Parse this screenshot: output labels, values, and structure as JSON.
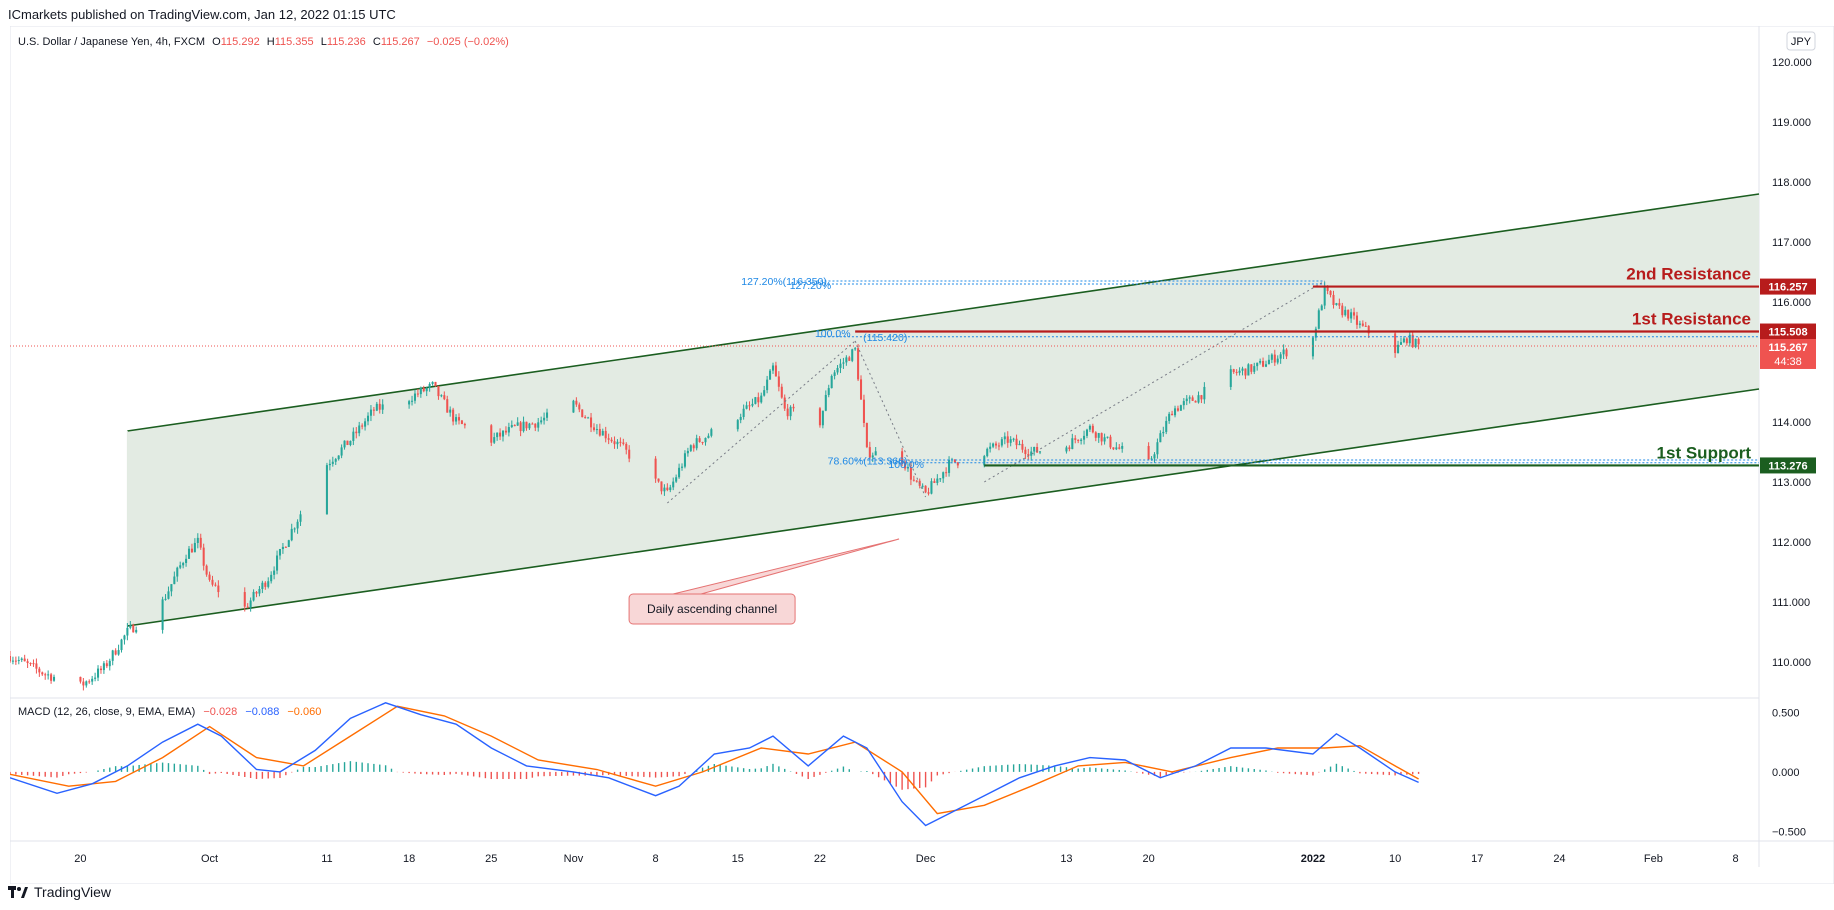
{
  "header": {
    "publisher_line": "ICmarkets published on TradingView.com, Jan 12, 2022 01:15 UTC"
  },
  "legend": {
    "symbol": "U.S. Dollar / Japanese Yen, 4h, FXCM",
    "o_label": "O",
    "o_value": "115.292",
    "h_label": "H",
    "h_value": "115.355",
    "l_label": "L",
    "l_value": "115.236",
    "c_label": "C",
    "c_value": "115.267",
    "change": "−0.025 (−0.02%)"
  },
  "currency_badge": "JPY",
  "macd_legend": {
    "title": "MACD (12, 26, close, 9, EMA, EMA)",
    "hist_value": "−0.028",
    "macd_value": "−0.088",
    "signal_value": "−0.060"
  },
  "footer": {
    "brand": "TradingView"
  },
  "price_labels": {
    "r2": "116.257",
    "r1": "115.508",
    "last": "115.267",
    "countdown": "44:38",
    "s1": "113.276"
  },
  "annotations": {
    "r2": "2nd Resistance",
    "r1": "1st Resistance",
    "s1": "1st Support",
    "channel": "Daily ascending channel",
    "fib_127": "127.20%(116.350)",
    "fib_127b": "127.20%",
    "fib_100": "100.0%",
    "fib_100b": "(115.420)",
    "fib_786": "78.60%(113.366)",
    "fib_786b": "100.0%"
  },
  "colors": {
    "up": "#26a69a",
    "down": "#ef5350",
    "channel_line": "#1b5e20",
    "channel_fill": "#e3ebe3",
    "resistance": "#b71c1c",
    "support": "#1b5e20",
    "fib": "#1e88e5",
    "macd_line": "#2962ff",
    "signal_line": "#ff6d00",
    "callout_fill": "#f8d7d7",
    "callout_border": "#e57373"
  },
  "chart_data": [
    {
      "type": "candlestick",
      "y_scale": {
        "min": 109.4,
        "max": 120.6
      },
      "yticks": [
        110,
        111,
        112,
        113,
        114,
        115,
        116,
        117,
        118,
        119,
        120
      ],
      "ytick_labels": [
        "110.000",
        "111.000",
        "112.000",
        "113.000",
        "114.000",
        "115.000",
        "116.000",
        "117.000",
        "118.000",
        "119.000",
        "120.000"
      ],
      "x_range": [
        "2021-09-14",
        "2022-02-10"
      ],
      "xticks": [
        {
          "date": "2021-09-20",
          "label": "20"
        },
        {
          "date": "2021-10-01",
          "label": "Oct"
        },
        {
          "date": "2021-10-11",
          "label": "11"
        },
        {
          "date": "2021-10-18",
          "label": "18"
        },
        {
          "date": "2021-10-25",
          "label": "25"
        },
        {
          "date": "2021-11-01",
          "label": "Nov"
        },
        {
          "date": "2021-11-08",
          "label": "8"
        },
        {
          "date": "2021-11-15",
          "label": "15"
        },
        {
          "date": "2021-11-22",
          "label": "22"
        },
        {
          "date": "2021-12-01",
          "label": "Dec"
        },
        {
          "date": "2021-12-13",
          "label": "13"
        },
        {
          "date": "2021-12-20",
          "label": "20"
        },
        {
          "date": "2022-01-03",
          "label": "2022"
        },
        {
          "date": "2022-01-10",
          "label": "10"
        },
        {
          "date": "2022-01-17",
          "label": "17"
        },
        {
          "date": "2022-01-24",
          "label": "24"
        },
        {
          "date": "2022-02-01",
          "label": "Feb"
        },
        {
          "date": "2022-02-08",
          "label": "8"
        }
      ],
      "price_path": [
        [
          "2021-09-14",
          110.1
        ],
        [
          "2021-09-17",
          109.8
        ],
        [
          "2021-09-20",
          109.6
        ],
        [
          "2021-09-22",
          109.9
        ],
        [
          "2021-09-24",
          110.5
        ],
        [
          "2021-09-27",
          111.0
        ],
        [
          "2021-09-29",
          111.8
        ],
        [
          "2021-09-30",
          112.0
        ],
        [
          "2021-10-01",
          111.3
        ],
        [
          "2021-10-04",
          110.9
        ],
        [
          "2021-10-06",
          111.4
        ],
        [
          "2021-10-08",
          112.2
        ],
        [
          "2021-10-11",
          113.3
        ],
        [
          "2021-10-13",
          113.7
        ],
        [
          "2021-10-15",
          114.2
        ],
        [
          "2021-10-18",
          114.4
        ],
        [
          "2021-10-20",
          114.6
        ],
        [
          "2021-10-22",
          114.0
        ],
        [
          "2021-10-25",
          113.7
        ],
        [
          "2021-10-27",
          113.9
        ],
        [
          "2021-10-29",
          114.0
        ],
        [
          "2021-11-01",
          114.3
        ],
        [
          "2021-11-03",
          113.9
        ],
        [
          "2021-11-05",
          113.6
        ],
        [
          "2021-11-08",
          113.0
        ],
        [
          "2021-11-09",
          112.8
        ],
        [
          "2021-11-11",
          113.6
        ],
        [
          "2021-11-15",
          114.1
        ],
        [
          "2021-11-17",
          114.4
        ],
        [
          "2021-11-18",
          114.9
        ],
        [
          "2021-11-19",
          114.2
        ],
        [
          "2021-11-22",
          114.0
        ],
        [
          "2021-11-23",
          114.8
        ],
        [
          "2021-11-25",
          115.2
        ],
        [
          "2021-11-26",
          113.5
        ],
        [
          "2021-11-29",
          113.4
        ],
        [
          "2021-11-30",
          113.0
        ],
        [
          "2021-12-01",
          112.8
        ],
        [
          "2021-12-03",
          113.3
        ],
        [
          "2021-12-06",
          113.5
        ],
        [
          "2021-12-08",
          113.7
        ],
        [
          "2021-12-10",
          113.5
        ],
        [
          "2021-12-13",
          113.6
        ],
        [
          "2021-12-15",
          113.9
        ],
        [
          "2021-12-17",
          113.6
        ],
        [
          "2021-12-20",
          113.3
        ],
        [
          "2021-12-22",
          114.2
        ],
        [
          "2021-12-24",
          114.4
        ],
        [
          "2021-12-27",
          114.8
        ],
        [
          "2021-12-29",
          114.9
        ],
        [
          "2021-12-31",
          115.1
        ],
        [
          "2022-01-03",
          115.4
        ],
        [
          "2022-01-04",
          116.2
        ],
        [
          "2022-01-05",
          115.9
        ],
        [
          "2022-01-06",
          115.8
        ],
        [
          "2022-01-07",
          115.6
        ],
        [
          "2022-01-10",
          115.2
        ],
        [
          "2022-01-11",
          115.4
        ],
        [
          "2022-01-12",
          115.27
        ]
      ],
      "channel": {
        "upper": [
          [
            "2021-09-24",
            113.85
          ],
          [
            "2022-02-10",
            117.8
          ]
        ],
        "lower": [
          [
            "2021-09-24",
            110.6
          ],
          [
            "2022-02-10",
            114.55
          ]
        ]
      },
      "levels": [
        {
          "name": "2nd Resistance",
          "value": 116.257,
          "from": "2022-01-03"
        },
        {
          "name": "1st Resistance",
          "value": 115.508,
          "from": "2021-11-25"
        },
        {
          "name": "1st Support",
          "value": 113.276,
          "from": "2021-12-06"
        }
      ],
      "last_price": 115.267,
      "fib_levels": [
        {
          "label": "127.20%(116.350)",
          "value": 116.35
        },
        {
          "label": "100.0%(115.420)",
          "value": 115.42
        },
        {
          "label": "78.60%(113.366)",
          "value": 113.366
        }
      ]
    },
    {
      "type": "line",
      "name": "MACD (12, 26, close, 9, EMA, EMA)",
      "y_scale": {
        "min": -0.58,
        "max": 0.62
      },
      "yticks": [
        0.5,
        0.0,
        -0.5
      ],
      "ytick_labels": [
        "0.500",
        "0.000",
        "−0.500"
      ],
      "macd": [
        [
          "2021-09-14",
          -0.05
        ],
        [
          "2021-09-18",
          -0.18
        ],
        [
          "2021-09-21",
          -0.1
        ],
        [
          "2021-09-24",
          0.05
        ],
        [
          "2021-09-27",
          0.25
        ],
        [
          "2021-09-30",
          0.4
        ],
        [
          "2021-10-02",
          0.3
        ],
        [
          "2021-10-05",
          0.02
        ],
        [
          "2021-10-07",
          0.0
        ],
        [
          "2021-10-10",
          0.18
        ],
        [
          "2021-10-13",
          0.45
        ],
        [
          "2021-10-16",
          0.58
        ],
        [
          "2021-10-19",
          0.48
        ],
        [
          "2021-10-22",
          0.4
        ],
        [
          "2021-10-25",
          0.2
        ],
        [
          "2021-10-28",
          0.05
        ],
        [
          "2021-11-01",
          0.0
        ],
        [
          "2021-11-04",
          -0.05
        ],
        [
          "2021-11-08",
          -0.2
        ],
        [
          "2021-11-10",
          -0.12
        ],
        [
          "2021-11-13",
          0.15
        ],
        [
          "2021-11-16",
          0.2
        ],
        [
          "2021-11-18",
          0.3
        ],
        [
          "2021-11-21",
          0.05
        ],
        [
          "2021-11-24",
          0.3
        ],
        [
          "2021-11-26",
          0.2
        ],
        [
          "2021-11-29",
          -0.25
        ],
        [
          "2021-12-01",
          -0.45
        ],
        [
          "2021-12-03",
          -0.35
        ],
        [
          "2021-12-06",
          -0.2
        ],
        [
          "2021-12-09",
          -0.05
        ],
        [
          "2021-12-12",
          0.05
        ],
        [
          "2021-12-15",
          0.12
        ],
        [
          "2021-12-18",
          0.1
        ],
        [
          "2021-12-21",
          -0.05
        ],
        [
          "2021-12-24",
          0.05
        ],
        [
          "2021-12-27",
          0.2
        ],
        [
          "2021-12-30",
          0.2
        ],
        [
          "2022-01-03",
          0.15
        ],
        [
          "2022-01-05",
          0.32
        ],
        [
          "2022-01-07",
          0.2
        ],
        [
          "2022-01-10",
          0.0
        ],
        [
          "2022-01-12",
          -0.088
        ]
      ],
      "signal": [
        [
          "2021-09-14",
          -0.02
        ],
        [
          "2021-09-19",
          -0.12
        ],
        [
          "2021-09-23",
          -0.08
        ],
        [
          "2021-09-27",
          0.12
        ],
        [
          "2021-10-01",
          0.38
        ],
        [
          "2021-10-05",
          0.12
        ],
        [
          "2021-10-09",
          0.05
        ],
        [
          "2021-10-13",
          0.3
        ],
        [
          "2021-10-17",
          0.55
        ],
        [
          "2021-10-21",
          0.47
        ],
        [
          "2021-10-25",
          0.3
        ],
        [
          "2021-10-29",
          0.1
        ],
        [
          "2021-11-03",
          0.02
        ],
        [
          "2021-11-08",
          -0.12
        ],
        [
          "2021-11-12",
          0.0
        ],
        [
          "2021-11-17",
          0.2
        ],
        [
          "2021-11-21",
          0.15
        ],
        [
          "2021-11-25",
          0.25
        ],
        [
          "2021-11-29",
          0.0
        ],
        [
          "2021-12-02",
          -0.35
        ],
        [
          "2021-12-06",
          -0.28
        ],
        [
          "2021-12-10",
          -0.12
        ],
        [
          "2021-12-14",
          0.05
        ],
        [
          "2021-12-18",
          0.08
        ],
        [
          "2021-12-22",
          0.0
        ],
        [
          "2021-12-27",
          0.12
        ],
        [
          "2021-12-31",
          0.2
        ],
        [
          "2022-01-04",
          0.2
        ],
        [
          "2022-01-07",
          0.22
        ],
        [
          "2022-01-10",
          0.05
        ],
        [
          "2022-01-12",
          -0.06
        ]
      ]
    }
  ]
}
